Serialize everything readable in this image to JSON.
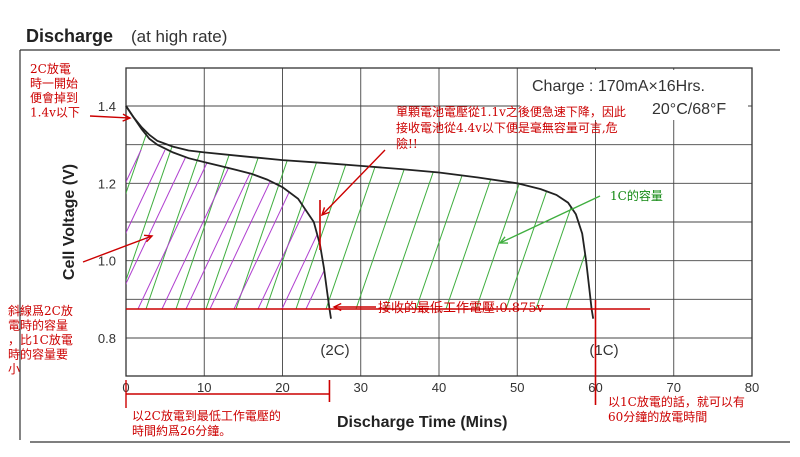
{
  "chart_data": {
    "type": "line",
    "title": "Discharge",
    "subtitle": "(at high rate)",
    "xlabel": "Discharge Time (Mins)",
    "ylabel": "Cell Voltage (V)",
    "xlim": [
      0,
      80
    ],
    "ylim": [
      0.8,
      1.4
    ],
    "x_ticks": [
      0,
      10,
      20,
      30,
      40,
      50,
      60,
      70,
      80
    ],
    "y_ticks": [
      0.8,
      1.0,
      1.2,
      1.4
    ],
    "grid": true,
    "condition_box": {
      "line1": "Charge : 170mA×16Hrs.",
      "line2": "20°C/68°F"
    },
    "series": [
      {
        "name": "(2C)",
        "color": "#222222",
        "points": [
          [
            0,
            1.4
          ],
          [
            1,
            1.37
          ],
          [
            2,
            1.34
          ],
          [
            3,
            1.315
          ],
          [
            4,
            1.3
          ],
          [
            6,
            1.28
          ],
          [
            8,
            1.265
          ],
          [
            10,
            1.255
          ],
          [
            12,
            1.245
          ],
          [
            14,
            1.235
          ],
          [
            16,
            1.225
          ],
          [
            18,
            1.21
          ],
          [
            20,
            1.19
          ],
          [
            22,
            1.16
          ],
          [
            24,
            1.1
          ],
          [
            24.8,
            1.04
          ],
          [
            25.3,
            0.98
          ],
          [
            25.7,
            0.92
          ],
          [
            26,
            0.875
          ],
          [
            26.2,
            0.85
          ]
        ]
      },
      {
        "name": "(1C)",
        "color": "#222222",
        "points": [
          [
            0,
            1.4
          ],
          [
            1,
            1.37
          ],
          [
            2,
            1.345
          ],
          [
            3,
            1.325
          ],
          [
            4,
            1.31
          ],
          [
            6,
            1.295
          ],
          [
            8,
            1.285
          ],
          [
            10,
            1.28
          ],
          [
            15,
            1.27
          ],
          [
            20,
            1.26
          ],
          [
            25,
            1.253
          ],
          [
            30,
            1.245
          ],
          [
            35,
            1.237
          ],
          [
            40,
            1.228
          ],
          [
            45,
            1.215
          ],
          [
            50,
            1.2
          ],
          [
            53,
            1.185
          ],
          [
            55,
            1.17
          ],
          [
            56.5,
            1.15
          ],
          [
            57.5,
            1.12
          ],
          [
            58.3,
            1.07
          ],
          [
            58.8,
            1.0
          ],
          [
            59.2,
            0.93
          ],
          [
            59.5,
            0.875
          ],
          [
            59.7,
            0.85
          ]
        ]
      }
    ],
    "reference_lines": {
      "min_voltage": 0.875,
      "voltage_1_1": 1.1,
      "marker_26min": 26,
      "marker_60min": 60
    },
    "annotations": {
      "a1": {
        "lines": [
          "2C放電",
          "時一開始",
          "便會掉到",
          "1.4v以下"
        ],
        "color": "#cc0000"
      },
      "a2": {
        "lines": [
          "單顆電池電壓從1.1v之後便急速下降，因此",
          "接收電池從4.4v以下便是毫無容量可言,危",
          "險!!"
        ],
        "color": "#cc0000"
      },
      "a3": {
        "text": "1C的容量",
        "color": "#118811"
      },
      "a4": {
        "text": "接收的最低工作電壓:0.875v",
        "color": "#cc0000"
      },
      "a5": {
        "lines": [
          "斜線爲2C放",
          "電時的容量",
          "，比1C放電",
          "時的容量要",
          "小"
        ],
        "color": "#cc0000"
      },
      "a6": {
        "lines": [
          "以2C放電到最低工作電壓的",
          "時間約爲26分鐘。"
        ],
        "color": "#cc0000"
      },
      "a7": {
        "lines": [
          "以1C放電的話，就可以有",
          "60分鐘的放電時間"
        ],
        "color": "#cc0000"
      }
    },
    "colors": {
      "hatch_green": "#3fae3f",
      "hatch_purple": "#b040d0",
      "annotation_red": "#cc0000"
    }
  }
}
